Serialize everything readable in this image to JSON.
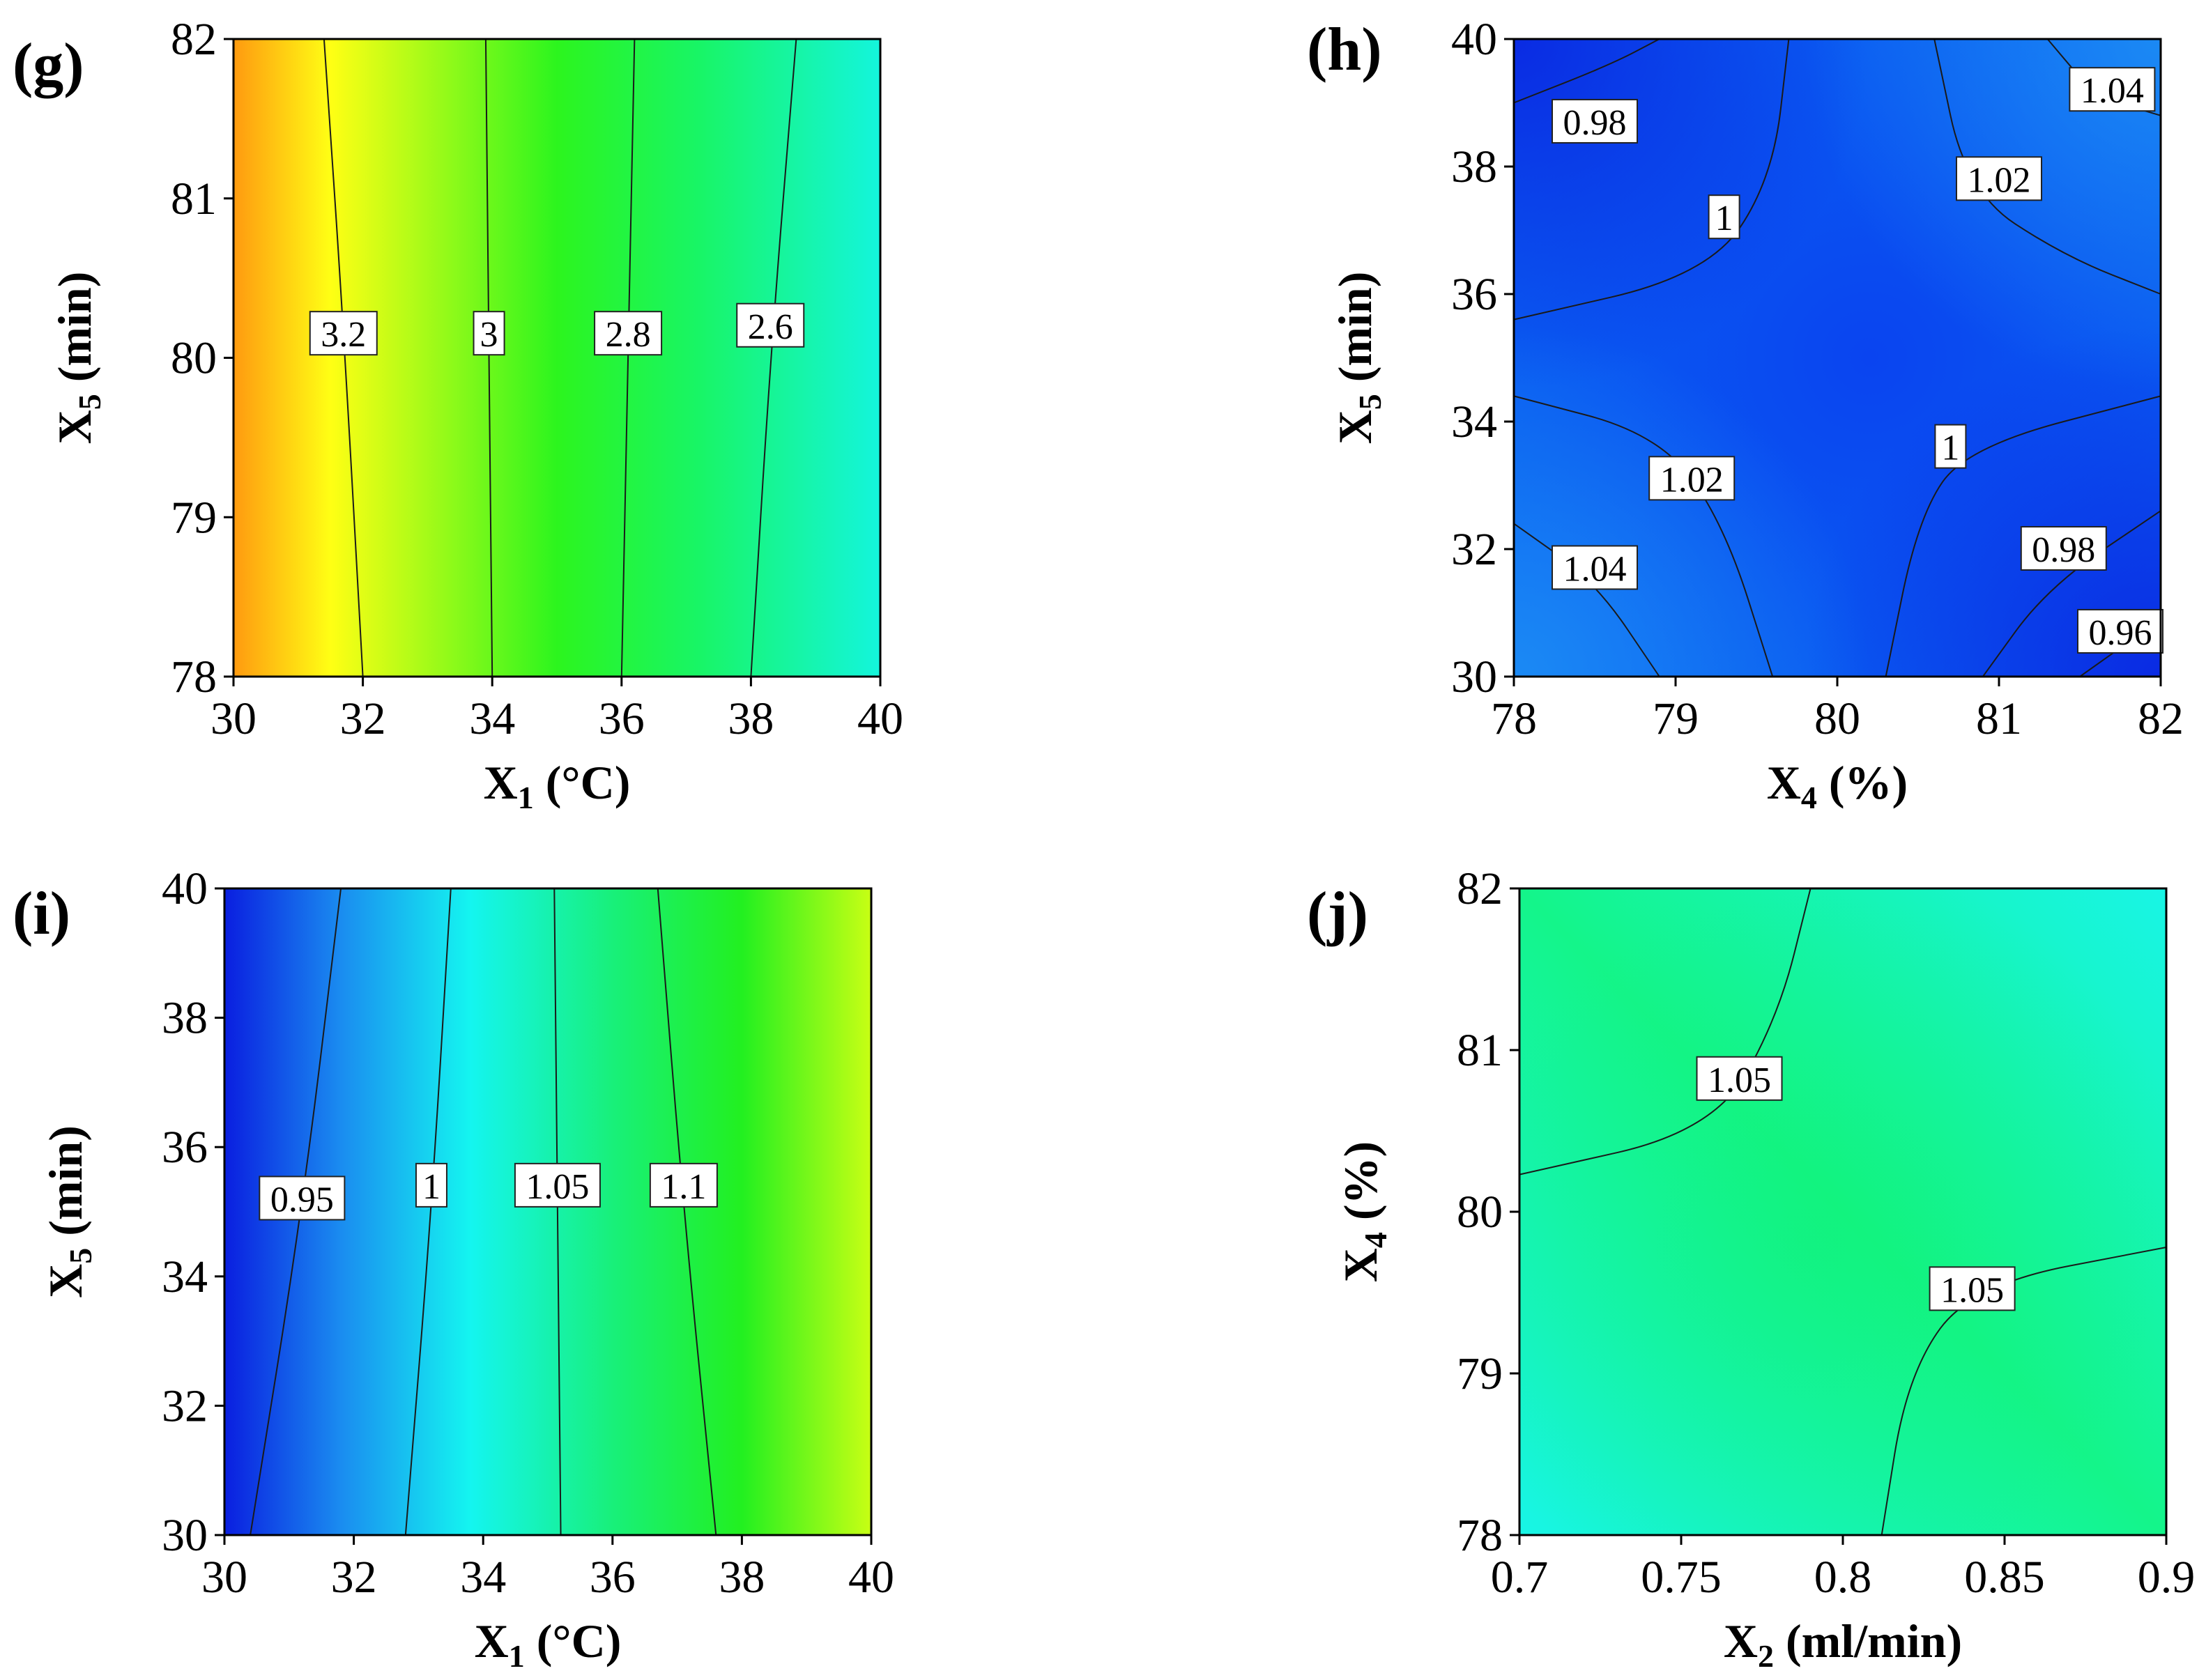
{
  "chart_data": [
    {
      "id": "g",
      "panel_label": "(g)",
      "type": "contour",
      "x_var": "X",
      "x_sub": "1",
      "x_unit": "(°C)",
      "y_var": "X",
      "y_sub": "5",
      "y_unit": "(min)",
      "xlim": [
        30,
        40
      ],
      "ylim": [
        78,
        82
      ],
      "xticks": [
        "30",
        "32",
        "34",
        "36",
        "38",
        "40"
      ],
      "yticks": [
        "78",
        "79",
        "80",
        "81",
        "82"
      ],
      "gradient": {
        "direction": "horizontal",
        "stops": [
          {
            "pos": 0.0,
            "color": "#ff9a10"
          },
          {
            "pos": 0.15,
            "color": "#ffff14"
          },
          {
            "pos": 0.5,
            "color": "#2cf51e"
          },
          {
            "pos": 0.72,
            "color": "#18f566"
          },
          {
            "pos": 1.0,
            "color": "#14f5dc"
          }
        ]
      },
      "contours": [
        {
          "label": "3.2",
          "points": [
            [
              31.4,
              82
            ],
            [
              31.7,
              80.2
            ],
            [
              32,
              78
            ]
          ],
          "label_at": [
            31.7,
            80.15
          ]
        },
        {
          "label": "3",
          "points": [
            [
              33.9,
              82
            ],
            [
              33.95,
              80
            ],
            [
              34,
              78
            ]
          ],
          "label_at": [
            33.95,
            80.15
          ]
        },
        {
          "label": "2.8",
          "points": [
            [
              36.2,
              82
            ],
            [
              36.1,
              80
            ],
            [
              36,
              78
            ]
          ],
          "label_at": [
            36.1,
            80.15
          ]
        },
        {
          "label": "2.6",
          "points": [
            [
              38.7,
              82
            ],
            [
              38.3,
              80
            ],
            [
              38,
              78
            ]
          ],
          "label_at": [
            38.3,
            80.2
          ]
        }
      ]
    },
    {
      "id": "h",
      "panel_label": "(h)",
      "type": "contour",
      "x_var": "X",
      "x_sub": "4",
      "x_unit": "(%)",
      "y_var": "X",
      "y_sub": "5",
      "y_unit": "(min)",
      "xlim": [
        78,
        82
      ],
      "ylim": [
        30,
        40
      ],
      "xticks": [
        "78",
        "79",
        "80",
        "81",
        "82"
      ],
      "yticks": [
        "30",
        "32",
        "34",
        "36",
        "38",
        "40"
      ],
      "gradient": {
        "direction": "radial",
        "stops": [
          {
            "pos": 0.0,
            "color": "#0a44f0"
          },
          {
            "pos": 1.0,
            "color": "#0a66f2"
          }
        ]
      },
      "contours": [
        {
          "label": "0.98",
          "points": [
            [
              78,
              39.0
            ],
            [
              78.6,
              39.6
            ],
            [
              78.9,
              40
            ]
          ],
          "label_at": [
            78.5,
            38.7
          ]
        },
        {
          "label": "1",
          "points": [
            [
              78,
              35.6
            ],
            [
              79.2,
              36.3
            ],
            [
              79.6,
              37.8
            ],
            [
              79.7,
              40
            ]
          ],
          "label_at": [
            79.3,
            37.2
          ]
        },
        {
          "label": "1.02",
          "points": [
            [
              80.6,
              40
            ],
            [
              80.8,
              37.6
            ],
            [
              81.4,
              36.6
            ],
            [
              82,
              36
            ]
          ],
          "label_at": [
            81.0,
            37.8
          ]
        },
        {
          "label": "1.04",
          "points": [
            [
              81.3,
              40
            ],
            [
              81.6,
              39.1
            ],
            [
              82,
              38.8
            ]
          ],
          "label_at": [
            81.7,
            39.2
          ]
        },
        {
          "label": "1.02",
          "points": [
            [
              78,
              34.4
            ],
            [
              78.9,
              33.8
            ],
            [
              79.3,
              32.4
            ],
            [
              79.6,
              30
            ]
          ],
          "label_at": [
            79.1,
            33.1
          ]
        },
        {
          "label": "1.04",
          "points": [
            [
              78,
              32.4
            ],
            [
              78.5,
              31.5
            ],
            [
              78.9,
              30
            ]
          ],
          "label_at": [
            78.5,
            31.7
          ]
        },
        {
          "label": "1",
          "points": [
            [
              80.3,
              30
            ],
            [
              80.5,
              32.5
            ],
            [
              80.8,
              33.6
            ],
            [
              82,
              34.4
            ]
          ],
          "label_at": [
            80.7,
            33.6
          ]
        },
        {
          "label": "0.98",
          "points": [
            [
              80.9,
              30
            ],
            [
              81.3,
              31.4
            ],
            [
              82,
              32.6
            ]
          ],
          "label_at": [
            81.4,
            32.0
          ]
        },
        {
          "label": "0.96",
          "points": [
            [
              81.5,
              30
            ],
            [
              82,
              30.9
            ]
          ],
          "label_at": [
            81.75,
            30.7
          ]
        }
      ]
    },
    {
      "id": "i",
      "panel_label": "(i)",
      "type": "contour",
      "x_var": "X",
      "x_sub": "1",
      "x_unit": "(°C)",
      "y_var": "X",
      "y_sub": "5",
      "y_unit": "(min)",
      "xlim": [
        30,
        40
      ],
      "ylim": [
        30,
        40
      ],
      "xticks": [
        "30",
        "32",
        "34",
        "36",
        "38",
        "40"
      ],
      "yticks": [
        "30",
        "32",
        "34",
        "36",
        "38",
        "40"
      ],
      "gradient": {
        "direction": "horizontal",
        "stops": [
          {
            "pos": 0.0,
            "color": "#0a1ee0"
          },
          {
            "pos": 0.18,
            "color": "#1a8cf0"
          },
          {
            "pos": 0.38,
            "color": "#14f5f0"
          },
          {
            "pos": 0.6,
            "color": "#18f07a"
          },
          {
            "pos": 0.8,
            "color": "#22f020"
          },
          {
            "pos": 1.0,
            "color": "#c8ff14"
          }
        ]
      },
      "contours": [
        {
          "label": "0.95",
          "points": [
            [
              31.8,
              40
            ],
            [
              31.2,
              35
            ],
            [
              30.4,
              30
            ]
          ],
          "label_at": [
            31.2,
            35.2
          ]
        },
        {
          "label": "1",
          "points": [
            [
              33.5,
              40
            ],
            [
              33.2,
              35
            ],
            [
              32.8,
              30
            ]
          ],
          "label_at": [
            33.2,
            35.4
          ]
        },
        {
          "label": "1.05",
          "points": [
            [
              35.1,
              40
            ],
            [
              35.15,
              35
            ],
            [
              35.2,
              30
            ]
          ],
          "label_at": [
            35.15,
            35.4
          ]
        },
        {
          "label": "1.1",
          "points": [
            [
              36.7,
              40
            ],
            [
              37.1,
              35
            ],
            [
              37.6,
              30
            ]
          ],
          "label_at": [
            37.1,
            35.4
          ]
        }
      ]
    },
    {
      "id": "j",
      "panel_label": "(j)",
      "type": "contour",
      "x_var": "X",
      "x_sub": "2",
      "x_unit": "(ml/min)",
      "y_var": "X",
      "y_sub": "4",
      "y_unit": "(%)",
      "xlim": [
        0.7,
        0.9
      ],
      "ylim": [
        78,
        82
      ],
      "xticks": [
        "0.7",
        "0.75",
        "0.8",
        "0.85",
        "0.9"
      ],
      "yticks": [
        "78",
        "79",
        "80",
        "81",
        "82"
      ],
      "gradient": {
        "direction": "diagonal",
        "stops": [
          {
            "pos": 0.0,
            "color": "#18f5e6"
          },
          {
            "pos": 0.5,
            "color": "#14f58a"
          },
          {
            "pos": 1.0,
            "color": "#18f5e6"
          }
        ]
      },
      "contours": [
        {
          "label": "1.05",
          "points": [
            [
              0.7,
              80.23
            ],
            [
              0.76,
              80.5
            ],
            [
              0.78,
              81.2
            ],
            [
              0.79,
              82
            ]
          ],
          "label_at": [
            0.768,
            80.82
          ]
        },
        {
          "label": "1.05",
          "points": [
            [
              0.812,
              78
            ],
            [
              0.82,
              79.0
            ],
            [
              0.84,
              79.55
            ],
            [
              0.9,
              79.78
            ]
          ],
          "label_at": [
            0.84,
            79.52
          ]
        }
      ]
    }
  ]
}
